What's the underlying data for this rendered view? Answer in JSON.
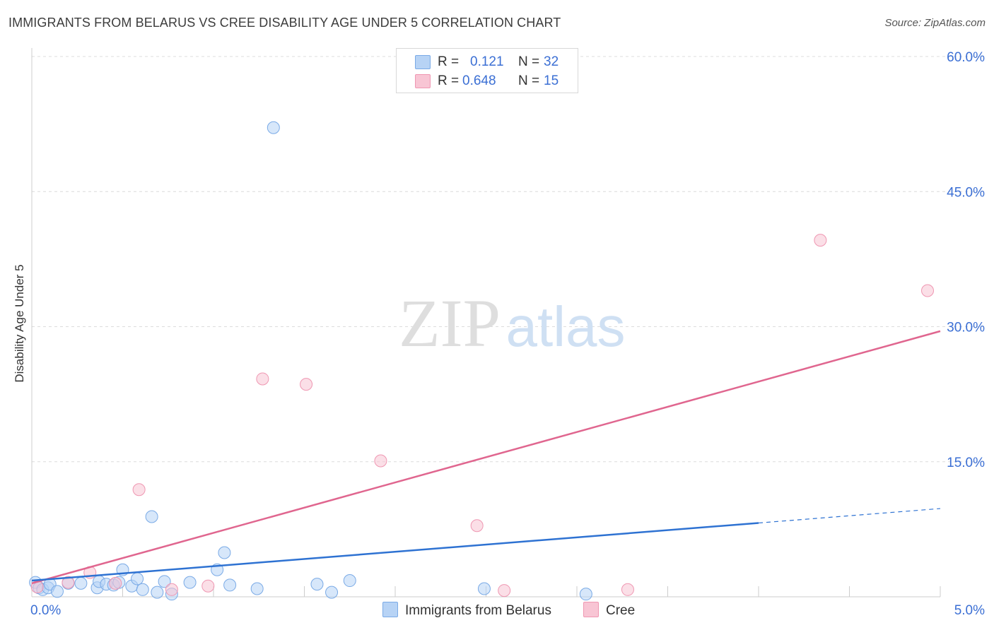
{
  "title": "IMMIGRANTS FROM BELARUS VS CREE DISABILITY AGE UNDER 5 CORRELATION CHART",
  "source": "Source: ZipAtlas.com",
  "watermark": {
    "zip": "ZIP",
    "atlas": "atlas"
  },
  "legend": {
    "r_label": "R =",
    "n_label": "N =",
    "series1": {
      "r": "0.121",
      "n": "32"
    },
    "series2": {
      "r": "0.648",
      "n": "15"
    }
  },
  "bottom_legend": {
    "series1": "Immigrants from Belarus",
    "series2": "Cree"
  },
  "colors": {
    "blue_fill": "#b7d3f5",
    "blue_stroke": "#7aaae6",
    "blue_line": "#2e72d2",
    "pink_fill": "#f8c5d4",
    "pink_stroke": "#ef97b2",
    "pink_line": "#e0668f",
    "grid": "#dcdcdc",
    "tick_text": "#3b6fd4"
  },
  "chart_data": {
    "type": "scatter",
    "title": "IMMIGRANTS FROM BELARUS VS CREE DISABILITY AGE UNDER 5 CORRELATION CHART",
    "xlabel": "",
    "ylabel": "Disability Age Under 5",
    "xlim": [
      0,
      5
    ],
    "ylim": [
      0,
      60
    ],
    "x_tick_labels": [
      "0.0%",
      "5.0%"
    ],
    "y_tick_labels": [
      "15.0%",
      "30.0%",
      "45.0%",
      "60.0%"
    ],
    "y_ticks": [
      15,
      30,
      45,
      60
    ],
    "grid": true,
    "series": [
      {
        "name": "Immigrants from Belarus",
        "r": 0.121,
        "n": 32,
        "points": [
          [
            0.02,
            1.6
          ],
          [
            0.04,
            1.0
          ],
          [
            0.06,
            0.8
          ],
          [
            0.09,
            1.0
          ],
          [
            0.1,
            1.4
          ],
          [
            0.14,
            0.6
          ],
          [
            0.2,
            1.5
          ],
          [
            0.27,
            1.5
          ],
          [
            0.36,
            1.0
          ],
          [
            0.37,
            1.7
          ],
          [
            0.41,
            1.4
          ],
          [
            0.45,
            1.3
          ],
          [
            0.48,
            1.6
          ],
          [
            0.5,
            3.0
          ],
          [
            0.55,
            1.2
          ],
          [
            0.58,
            2.0
          ],
          [
            0.61,
            0.8
          ],
          [
            0.66,
            8.9
          ],
          [
            0.69,
            0.5
          ],
          [
            0.73,
            1.7
          ],
          [
            0.77,
            0.3
          ],
          [
            0.87,
            1.6
          ],
          [
            1.02,
            3.0
          ],
          [
            1.06,
            4.9
          ],
          [
            1.09,
            1.3
          ],
          [
            1.24,
            0.9
          ],
          [
            1.33,
            52.1
          ],
          [
            1.57,
            1.4
          ],
          [
            1.65,
            0.5
          ],
          [
            1.75,
            1.8
          ],
          [
            2.49,
            0.9
          ],
          [
            3.05,
            0.3
          ]
        ],
        "trend": {
          "x": [
            0.0,
            4.0
          ],
          "y": [
            1.8,
            8.2
          ],
          "dashed_x": [
            4.0,
            5.0
          ],
          "dashed_y": [
            8.2,
            9.8
          ]
        }
      },
      {
        "name": "Cree",
        "r": 0.648,
        "n": 15,
        "points": [
          [
            0.03,
            1.1
          ],
          [
            0.2,
            1.6
          ],
          [
            0.32,
            2.7
          ],
          [
            0.46,
            1.5
          ],
          [
            0.59,
            11.9
          ],
          [
            0.77,
            0.8
          ],
          [
            0.97,
            1.2
          ],
          [
            1.27,
            24.2
          ],
          [
            1.51,
            23.6
          ],
          [
            1.92,
            15.1
          ],
          [
            2.45,
            7.9
          ],
          [
            2.6,
            0.7
          ],
          [
            3.28,
            0.8
          ],
          [
            4.34,
            39.6
          ],
          [
            4.93,
            34.0
          ]
        ],
        "trend": {
          "x": [
            0.0,
            5.0
          ],
          "y": [
            1.5,
            29.5
          ]
        }
      }
    ]
  }
}
